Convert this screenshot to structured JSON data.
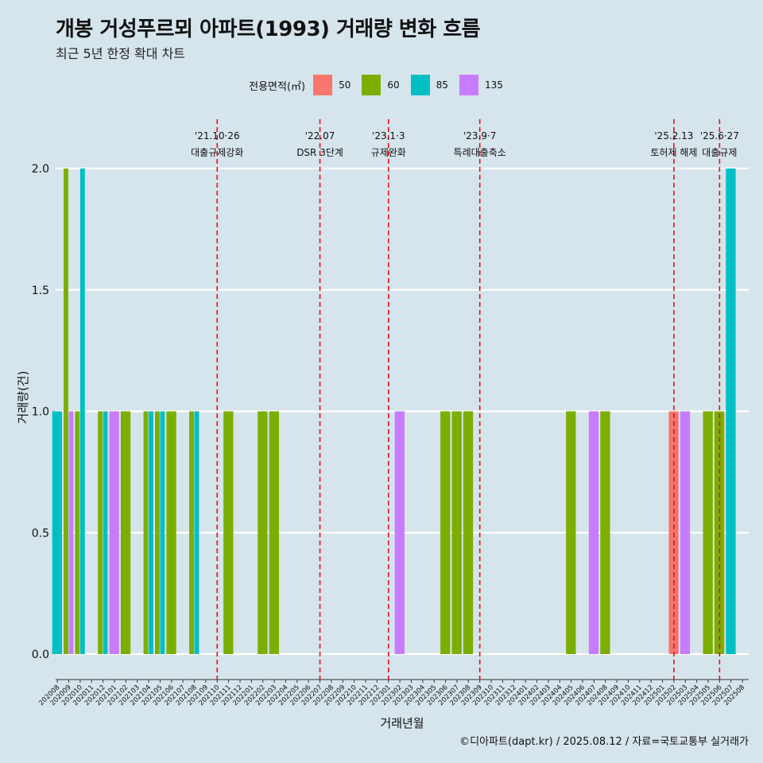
{
  "title": "개봉 거성푸르뫼 아파트(1993) 거래량 변화 흐름",
  "subtitle": "최근 5년 한정 확대 차트",
  "caption": "©디아파트(dapt.kr) / 2025.08.12 / 자료=국토교통부 실거래가",
  "legend": {
    "title": "전용면적(㎡)",
    "items": [
      {
        "label": "50",
        "color": "#f8766d"
      },
      {
        "label": "60",
        "color": "#7cae00"
      },
      {
        "label": "85",
        "color": "#00bfc4"
      },
      {
        "label": "135",
        "color": "#c77cff"
      }
    ]
  },
  "chart_data": {
    "type": "bar",
    "xlabel": "거래년월",
    "ylabel": "거래량(건)",
    "ylim": [
      0,
      2
    ],
    "yticks": [
      "0.0",
      "0.5",
      "1.0",
      "1.5",
      "2.0"
    ],
    "categories": [
      "202008",
      "202009",
      "202010",
      "202011",
      "202012",
      "202101",
      "202102",
      "202103",
      "202104",
      "202105",
      "202106",
      "202107",
      "202108",
      "202109",
      "202110",
      "202111",
      "202112",
      "202201",
      "202202",
      "202203",
      "202204",
      "202205",
      "202206",
      "202207",
      "202208",
      "202209",
      "202210",
      "202211",
      "202212",
      "202301",
      "202302",
      "202303",
      "202304",
      "202305",
      "202306",
      "202307",
      "202308",
      "202309",
      "202310",
      "202311",
      "202312",
      "202401",
      "202402",
      "202403",
      "202404",
      "202405",
      "202406",
      "202407",
      "202408",
      "202409",
      "202410",
      "202411",
      "202412",
      "202501",
      "202502",
      "202503",
      "202504",
      "202505",
      "202506",
      "202507",
      "202508"
    ],
    "series": [
      {
        "name": "50",
        "color": "#f8766d",
        "values": [
          0,
          0,
          0,
          0,
          0,
          0,
          0,
          0,
          0,
          0,
          0,
          0,
          0,
          0,
          0,
          0,
          0,
          0,
          0,
          0,
          0,
          0,
          0,
          0,
          0,
          0,
          0,
          0,
          0,
          0,
          0,
          0,
          0,
          0,
          0,
          0,
          0,
          0,
          0,
          0,
          0,
          0,
          0,
          0,
          0,
          0,
          0,
          0,
          0,
          0,
          0,
          0,
          0,
          0,
          1,
          0,
          0,
          0,
          0,
          0,
          0
        ]
      },
      {
        "name": "60",
        "color": "#7cae00",
        "values": [
          0,
          2,
          1,
          0,
          1,
          0,
          1,
          0,
          1,
          1,
          1,
          0,
          1,
          0,
          0,
          1,
          0,
          0,
          1,
          1,
          0,
          0,
          0,
          0,
          0,
          0,
          0,
          0,
          0,
          0,
          0,
          0,
          0,
          0,
          1,
          1,
          1,
          0,
          0,
          0,
          0,
          0,
          0,
          0,
          0,
          1,
          0,
          0,
          1,
          0,
          0,
          0,
          0,
          0,
          0,
          0,
          0,
          1,
          1,
          0,
          0
        ]
      },
      {
        "name": "85",
        "color": "#00bfc4",
        "values": [
          1,
          0,
          2,
          0,
          1,
          0,
          0,
          0,
          1,
          1,
          0,
          0,
          1,
          0,
          0,
          0,
          0,
          0,
          0,
          0,
          0,
          0,
          0,
          0,
          0,
          0,
          0,
          0,
          0,
          0,
          0,
          0,
          0,
          0,
          0,
          0,
          0,
          0,
          0,
          0,
          0,
          0,
          0,
          0,
          0,
          0,
          0,
          0,
          0,
          0,
          0,
          0,
          0,
          0,
          0,
          0,
          0,
          0,
          0,
          2,
          0
        ]
      },
      {
        "name": "135",
        "color": "#c77cff",
        "values": [
          0,
          1,
          0,
          0,
          0,
          1,
          0,
          0,
          0,
          0,
          0,
          0,
          0,
          0,
          0,
          0,
          0,
          0,
          0,
          0,
          0,
          0,
          0,
          0,
          0,
          0,
          0,
          0,
          0,
          0,
          1,
          0,
          0,
          0,
          0,
          0,
          0,
          0,
          0,
          0,
          0,
          0,
          0,
          0,
          0,
          0,
          0,
          1,
          0,
          0,
          0,
          0,
          0,
          0,
          0,
          1,
          0,
          0,
          0,
          0,
          0
        ]
      }
    ],
    "annotations": [
      {
        "date": "202110",
        "label1": "'21.10·26",
        "label2": "대출규제강화"
      },
      {
        "date": "202207",
        "label1": "'22.07",
        "label2": "DSR 3단계"
      },
      {
        "date": "202301",
        "label1": "'23.1·3",
        "label2": "규제완화"
      },
      {
        "date": "202309",
        "label1": "'23.9·7",
        "label2": "특례대출축소"
      },
      {
        "date": "202502",
        "label1": "'25.2.13",
        "label2": "토허제 해제"
      },
      {
        "date": "202506",
        "label1": "'25.6·27",
        "label2": "대출규제"
      }
    ]
  }
}
